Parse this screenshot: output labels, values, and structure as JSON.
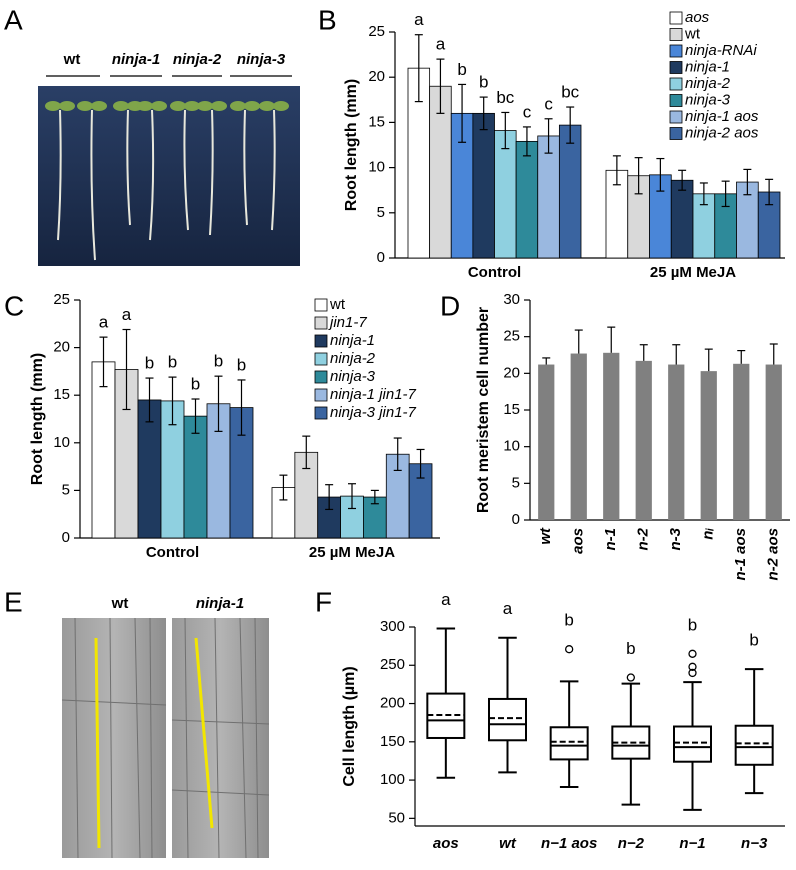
{
  "panel_labels": [
    "A",
    "B",
    "C",
    "D",
    "E",
    "F"
  ],
  "panel_a": {
    "genotypes": [
      "wt",
      "ninja-1",
      "ninja-2",
      "ninja-3"
    ]
  },
  "panel_e": {
    "genotypes": [
      "wt",
      "ninja-1"
    ]
  },
  "chart_data": [
    {
      "type": "bar",
      "ylabel": "Root length (mm)",
      "categories": [
        "Control",
        "25 µM MeJA"
      ],
      "ylim": [
        0,
        25
      ],
      "yticks": [
        0,
        5,
        10,
        15,
        20,
        25
      ],
      "letters": [
        "a",
        "a",
        "b",
        "b",
        "bc",
        "c",
        "c",
        "bc"
      ],
      "series": [
        {
          "name": "aos",
          "color": "#ffffff",
          "values": [
            21,
            9.7
          ],
          "errors": [
            3.7,
            1.6
          ]
        },
        {
          "name": "wt",
          "color": "#d9d9d9",
          "values": [
            19,
            9.1
          ],
          "errors": [
            3,
            2
          ]
        },
        {
          "name": "ninja-RNAi",
          "color": "#4a86d8",
          "values": [
            16,
            9.2
          ],
          "errors": [
            3.2,
            1.8
          ]
        },
        {
          "name": "ninja-1",
          "color": "#1f3a5f",
          "values": [
            16,
            8.6
          ],
          "errors": [
            1.8,
            1.1
          ]
        },
        {
          "name": "ninja-2",
          "color": "#8fd0e0",
          "values": [
            14.1,
            7.1
          ],
          "errors": [
            2,
            1.2
          ]
        },
        {
          "name": "ninja-3",
          "color": "#2e8a9a",
          "values": [
            12.9,
            7.1
          ],
          "errors": [
            1.6,
            1.4
          ]
        },
        {
          "name": "ninja-1 aos",
          "color": "#9ab8e0",
          "values": [
            13.5,
            8.4
          ],
          "errors": [
            1.9,
            1.4
          ]
        },
        {
          "name": "ninja-2 aos",
          "color": "#3a64a0",
          "values": [
            14.7,
            7.3
          ],
          "errors": [
            2,
            1.4
          ]
        }
      ]
    },
    {
      "type": "bar",
      "ylabel": "Root length (mm)",
      "categories": [
        "Control",
        "25 µM MeJA"
      ],
      "ylim": [
        0,
        25
      ],
      "yticks": [
        0,
        5,
        10,
        15,
        20,
        25
      ],
      "letters": [
        "a",
        "a",
        "b",
        "b",
        "b",
        "b",
        "b"
      ],
      "series": [
        {
          "name": "wt",
          "color": "#ffffff",
          "values": [
            18.5,
            5.3
          ],
          "errors": [
            2.6,
            1.3
          ]
        },
        {
          "name": "jin1-7",
          "color": "#d9d9d9",
          "values": [
            17.7,
            9
          ],
          "errors": [
            4.2,
            1.7
          ]
        },
        {
          "name": "ninja-1",
          "color": "#1f3a5f",
          "values": [
            14.5,
            4.3
          ],
          "errors": [
            2.3,
            1.3
          ]
        },
        {
          "name": "ninja-2",
          "color": "#8fd0e0",
          "values": [
            14.4,
            4.4
          ],
          "errors": [
            2.5,
            1.3
          ]
        },
        {
          "name": "ninja-3",
          "color": "#2e8a9a",
          "values": [
            12.8,
            4.3
          ],
          "errors": [
            1.8,
            0.7
          ]
        },
        {
          "name": "ninja-1 jin1-7",
          "color": "#9ab8e0",
          "values": [
            14.1,
            8.8
          ],
          "errors": [
            2.9,
            1.7
          ]
        },
        {
          "name": "ninja-3 jin1-7",
          "color": "#3a64a0",
          "values": [
            13.7,
            7.8
          ],
          "errors": [
            2.9,
            1.5
          ]
        }
      ]
    },
    {
      "type": "bar",
      "ylabel": "Root meristem cell number",
      "categories": [
        "wt",
        "aos",
        "n-1",
        "n-2",
        "n-3",
        "nᵢ",
        "n-1 aos",
        "n-2 aos"
      ],
      "values": [
        21.2,
        22.7,
        22.8,
        21.7,
        21.2,
        20.3,
        21.3,
        21.2
      ],
      "errors": [
        0.9,
        3.2,
        3.5,
        2.2,
        2.7,
        3,
        1.8,
        2.8
      ],
      "color": "#808080",
      "ylim": [
        0,
        30
      ],
      "yticks": [
        0,
        5,
        10,
        15,
        20,
        25,
        30
      ]
    },
    {
      "type": "box",
      "ylabel": "Cell length (µm)",
      "categories": [
        "aos",
        "wt",
        "n−1 aos",
        "n−2",
        "n−1",
        "n−3"
      ],
      "ylim": [
        40,
        300
      ],
      "yticks": [
        50,
        100,
        150,
        200,
        250,
        300
      ],
      "letters": [
        "a",
        "a",
        "b",
        "b",
        "b",
        "b"
      ],
      "boxes": [
        {
          "whislo": 103,
          "q1": 155,
          "med": 178,
          "q3": 213,
          "whishi": 298,
          "mean": 185,
          "fliers": []
        },
        {
          "whislo": 110,
          "q1": 152,
          "med": 173,
          "q3": 206,
          "whishi": 286,
          "mean": 181,
          "fliers": []
        },
        {
          "whislo": 91,
          "q1": 127,
          "med": 145,
          "q3": 169,
          "whishi": 229,
          "mean": 150,
          "fliers": [
            271
          ]
        },
        {
          "whislo": 68,
          "q1": 128,
          "med": 145,
          "q3": 170,
          "whishi": 226,
          "mean": 149,
          "fliers": [
            234
          ]
        },
        {
          "whislo": 61,
          "q1": 124,
          "med": 143,
          "q3": 170,
          "whishi": 228,
          "mean": 149,
          "fliers": [
            265,
            248,
            240
          ]
        },
        {
          "whislo": 83,
          "q1": 120,
          "med": 143,
          "q3": 171,
          "whishi": 245,
          "mean": 148,
          "fliers": []
        }
      ]
    }
  ]
}
